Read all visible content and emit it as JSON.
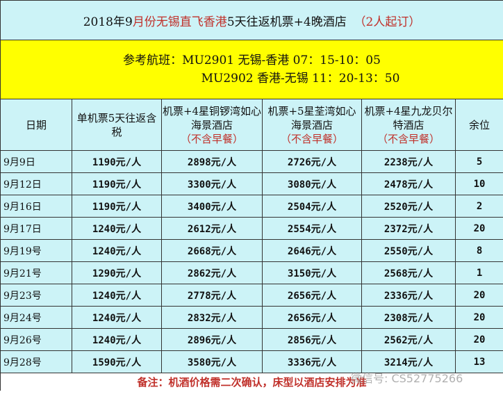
{
  "title": {
    "part1": "2018年9",
    "part2": "月份无锡直飞香港",
    "part3": "5天往返机票+4晚酒店",
    "part4": "（2人起订）"
  },
  "flight": {
    "line1": "参考航班：MU2901 无锡-香港 07：15-10：05",
    "line2": "MU2902 香港-无锡 11：20-13：50"
  },
  "headers": [
    {
      "text": "日期"
    },
    {
      "text": "单机票5天往返含税"
    },
    {
      "text": "机票+4星铜锣湾如心海景酒店",
      "note": "（不含早餐）"
    },
    {
      "text": "机票+5星荃湾如心海景酒店",
      "note": "（不含早餐）"
    },
    {
      "text": "机票+4星九龙贝尔特酒店",
      "note": "（不含早餐）"
    },
    {
      "text": "余位"
    }
  ],
  "rows": [
    [
      "9月9日",
      "1190元/人",
      "2898元/人",
      "2726元/人",
      "2238元/人",
      "5"
    ],
    [
      "9月12日",
      "1190元/人",
      "3300元/人",
      "3080元/人",
      "2478元/人",
      "10"
    ],
    [
      "9月16日",
      "1190元/人",
      "3400元/人",
      "2504元/人",
      "2520元/人",
      "2"
    ],
    [
      "9月17日",
      "1240元/人",
      "2612元/人",
      "2554元/人",
      "2372元/人",
      "20"
    ],
    [
      "9月19号",
      "1240元/人",
      "2668元/人",
      "2646元/人",
      "2550元/人",
      "8"
    ],
    [
      "9月21号",
      "1290元/人",
      "2862元/人",
      "3150元/人",
      "2568元/人",
      "1"
    ],
    [
      "9月23号",
      "1240元/人",
      "2778元/人",
      "2656元/人",
      "2336元/人",
      "20"
    ],
    [
      "9月24号",
      "1240元/人",
      "2832元/人",
      "2656元/人",
      "2308元/人",
      "20"
    ],
    [
      "9月26号",
      "1240元/人",
      "2896元/人",
      "2856元/人",
      "2562元/人",
      "20"
    ],
    [
      "9月28号",
      "1590元/人",
      "3580元/人",
      "3336元/人",
      "3214元/人",
      "13"
    ]
  ],
  "footer": "备注：机酒价格需二次确认，床型以酒店安排为准",
  "watermark": "微信号: CS52775266"
}
